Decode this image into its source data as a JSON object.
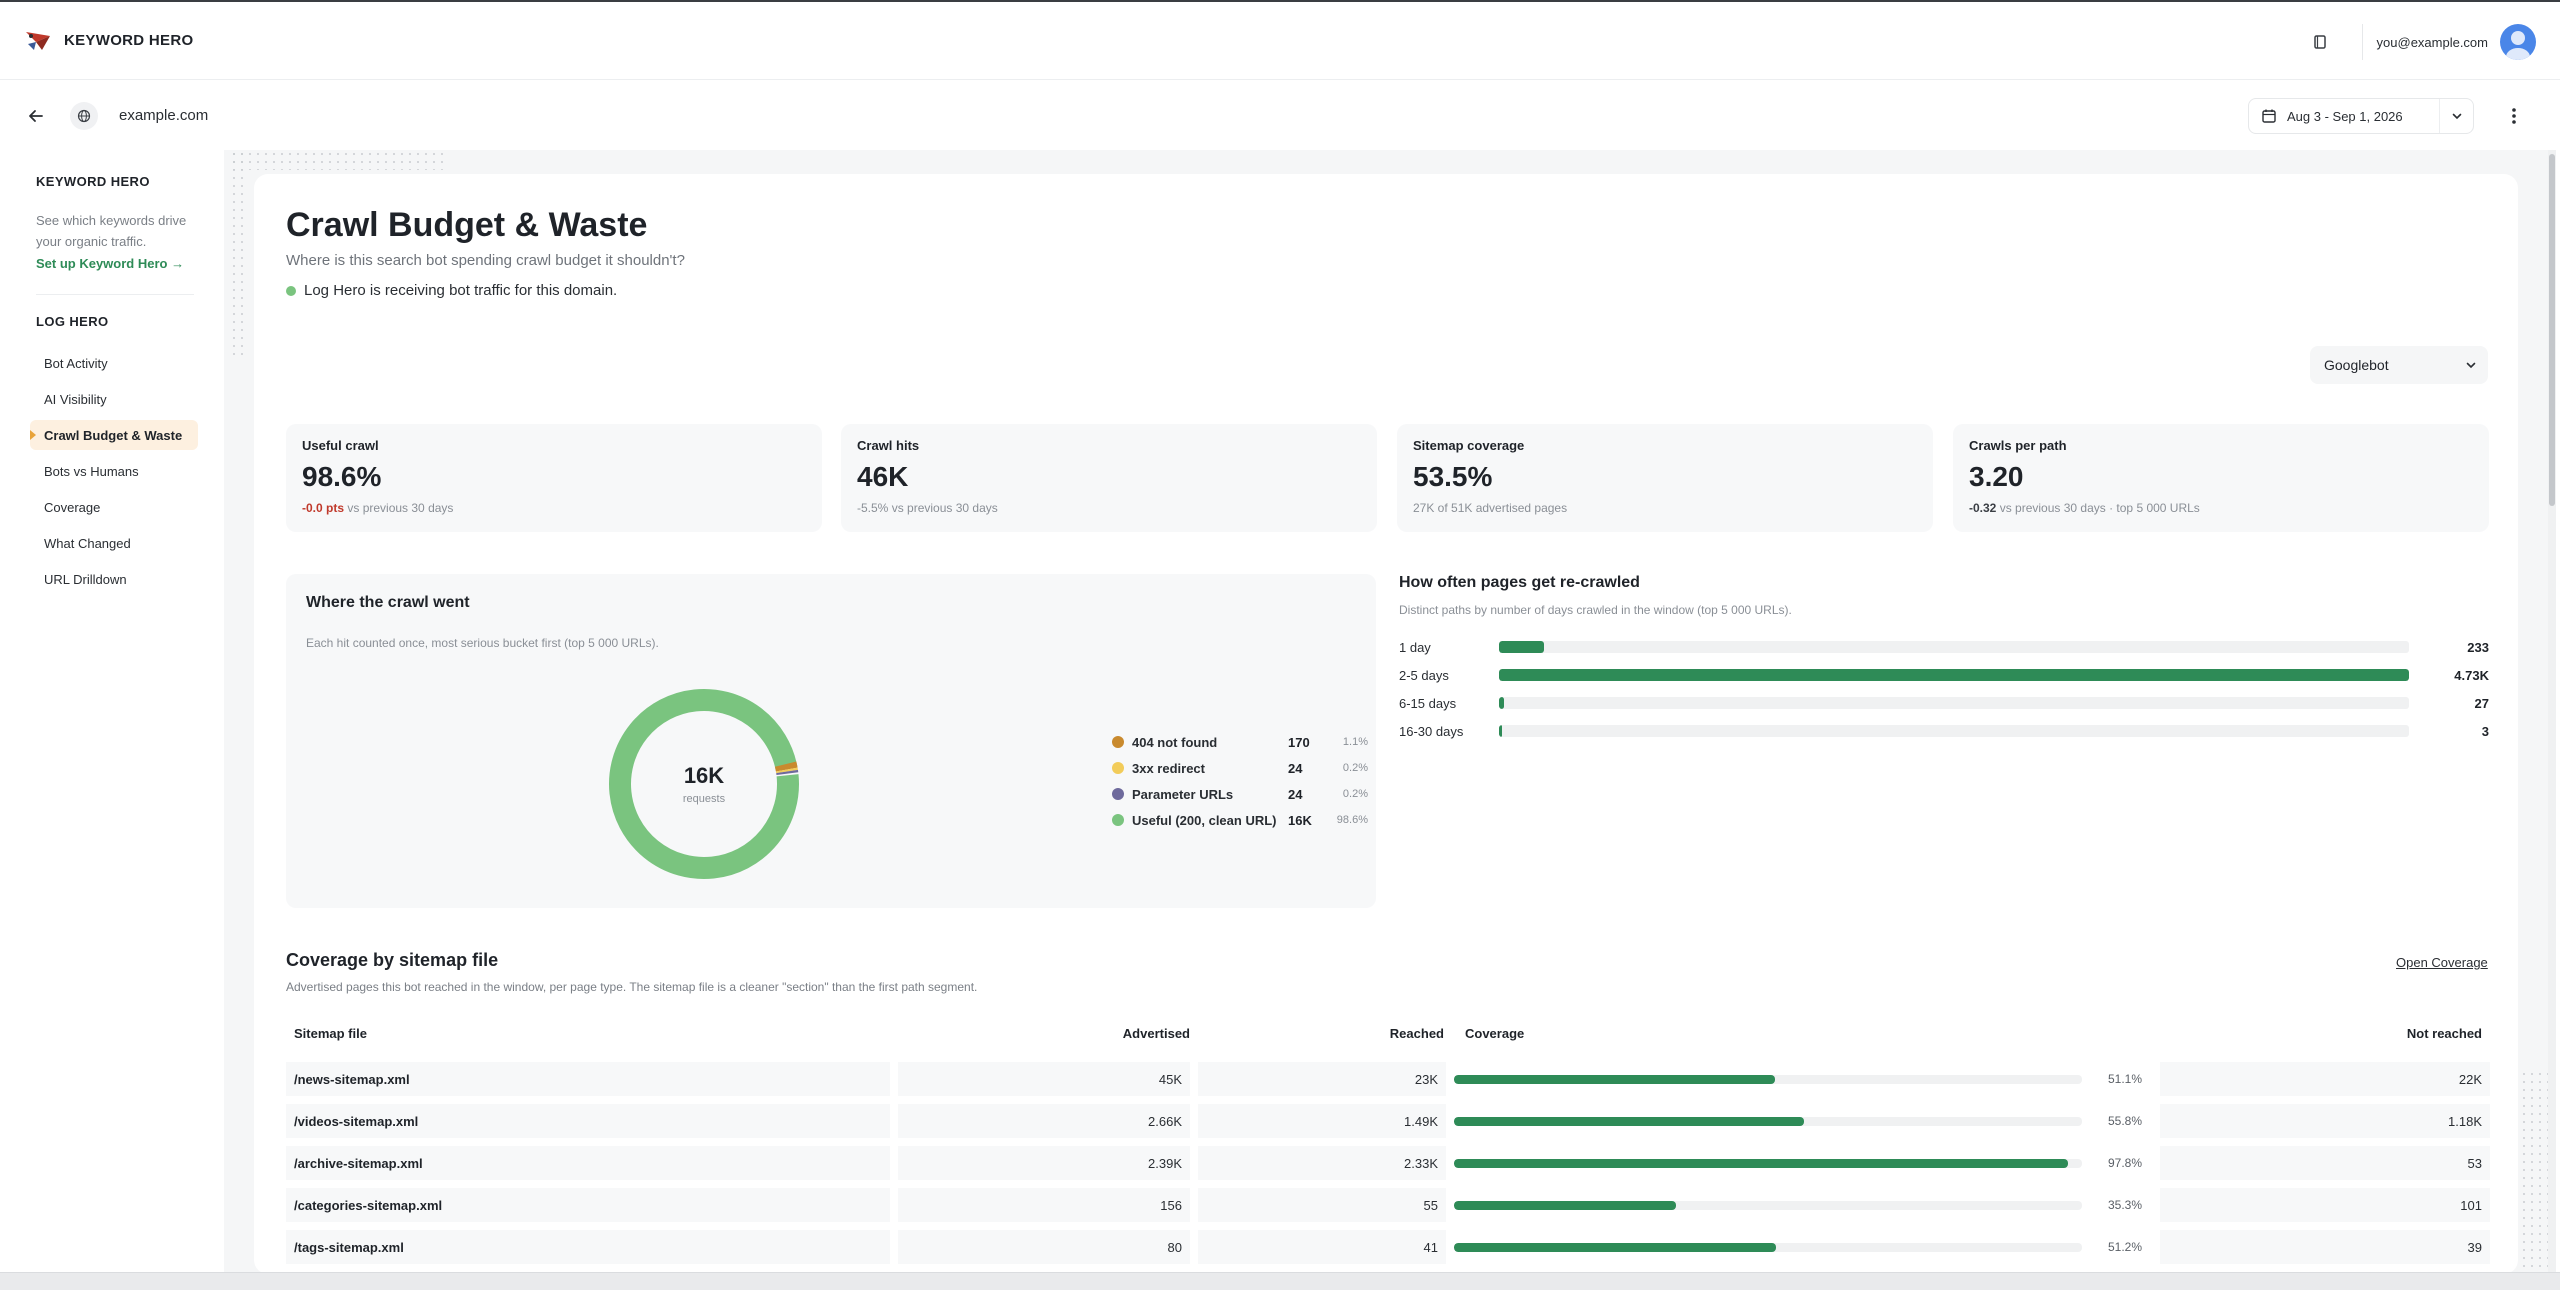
{
  "brand": {
    "name": "KEYWORD HERO",
    "accent": "#2e8b57"
  },
  "header": {
    "user_email": "you@example.com",
    "icons": [
      "book-icon",
      "user-avatar-icon"
    ]
  },
  "subbar": {
    "domain": "example.com",
    "date_range": "Aug 3 - Sep 1, 2026"
  },
  "sidebar": {
    "keyword_heading": "KEYWORD HERO",
    "keyword_desc": "See which keywords drive your organic traffic.",
    "keyword_link": "Set up Keyword Hero →",
    "log_heading": "LOG HERO",
    "items": [
      {
        "label": "Bot Activity",
        "active": false
      },
      {
        "label": "AI Visibility",
        "active": false
      },
      {
        "label": "Crawl Budget & Waste",
        "active": true
      },
      {
        "label": "Bots vs Humans",
        "active": false
      },
      {
        "label": "Coverage",
        "active": false
      },
      {
        "label": "What Changed",
        "active": false
      },
      {
        "label": "URL Drilldown",
        "active": false
      }
    ]
  },
  "page": {
    "title": "Crawl Budget & Waste",
    "subtitle": "Where is this search bot spending crawl budget it shouldn't?",
    "status": "Log Hero is receiving bot traffic for this domain.",
    "status_color": "#7ac47f",
    "bot_select": "Googlebot"
  },
  "kpis": [
    {
      "label": "Useful crawl",
      "value": "98.6%",
      "delta": "-0.0 pts",
      "delta_style": "neg",
      "note": "vs previous 30 days"
    },
    {
      "label": "Crawl hits",
      "value": "46K",
      "delta": "-5.5%",
      "delta_style": "plain",
      "note": "vs previous 30 days"
    },
    {
      "label": "Sitemap coverage",
      "value": "53.5%",
      "delta": "",
      "delta_style": "plain",
      "note": "27K of 51K advertised pages"
    },
    {
      "label": "Crawls per path",
      "value": "3.20",
      "delta": "-0.32",
      "delta_style": "dark",
      "note": "vs previous 30 days · top 5 000 URLs"
    }
  ],
  "crawl_panel": {
    "title": "Where the crawl went",
    "subtitle": "Each hit counted once, most serious bucket first (top 5 000 URLs).",
    "center_value": "16K",
    "center_unit": "requests"
  },
  "recrawl": {
    "title": "How often pages get re-crawled",
    "subtitle": "Distinct paths by number of days crawled in the window (top 5 000 URLs)."
  },
  "chart_data": [
    {
      "type": "pie",
      "categories": [
        "404 not found",
        "3xx redirect",
        "Parameter URLs",
        "Useful (200, clean URL)"
      ],
      "values": [
        170,
        24,
        24,
        16000
      ],
      "value_labels": [
        "170",
        "24",
        "24",
        "16K"
      ],
      "percent_labels": [
        "1.1%",
        "0.2%",
        "0.2%",
        "98.6%"
      ],
      "colors": [
        "#c98a2e",
        "#f2cc5a",
        "#6e6a9c",
        "#7ac47f"
      ],
      "legend": "right"
    },
    {
      "type": "bar",
      "orientation": "horizontal",
      "categories": [
        "1 day",
        "2-5 days",
        "6-15 days",
        "16-30 days"
      ],
      "values": [
        233,
        4730,
        27,
        3
      ],
      "value_labels": [
        "233",
        "4.73K",
        "27",
        "3"
      ],
      "color": "#2e8b57"
    }
  ],
  "coverage": {
    "title": "Coverage by sitemap file",
    "subtitle": "Advertised pages this bot reached in the window, per page type. The sitemap file is a cleaner \"section\" than the first path segment.",
    "link": "Open Coverage",
    "headers": {
      "file": "Sitemap file",
      "advertised": "Advertised",
      "reached": "Reached",
      "coverage": "Coverage",
      "not_reached": "Not reached"
    },
    "rows": [
      {
        "file": "/news-sitemap.xml",
        "advertised": "45K",
        "reached": "23K",
        "pct": 51.1,
        "pct_label": "51.1%",
        "not_reached": "22K"
      },
      {
        "file": "/videos-sitemap.xml",
        "advertised": "2.66K",
        "reached": "1.49K",
        "pct": 55.8,
        "pct_label": "55.8%",
        "not_reached": "1.18K"
      },
      {
        "file": "/archive-sitemap.xml",
        "advertised": "2.39K",
        "reached": "2.33K",
        "pct": 97.8,
        "pct_label": "97.8%",
        "not_reached": "53"
      },
      {
        "file": "/categories-sitemap.xml",
        "advertised": "156",
        "reached": "55",
        "pct": 35.3,
        "pct_label": "35.3%",
        "not_reached": "101"
      },
      {
        "file": "/tags-sitemap.xml",
        "advertised": "80",
        "reached": "41",
        "pct": 51.2,
        "pct_label": "51.2%",
        "not_reached": "39"
      }
    ]
  }
}
